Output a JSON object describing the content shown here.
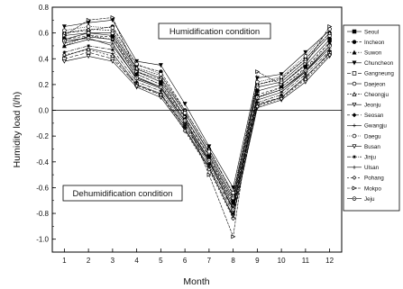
{
  "chart_data": {
    "type": "line",
    "title": "",
    "xlabel": "Month",
    "ylabel": "Humidity load (l/h)",
    "x": [
      1,
      2,
      3,
      4,
      5,
      6,
      7,
      8,
      9,
      10,
      11,
      12
    ],
    "xlim": [
      0.5,
      12.5
    ],
    "ylim": [
      -1.1,
      0.8
    ],
    "yticks": [
      -1.0,
      -0.8,
      -0.6,
      -0.4,
      -0.2,
      0.0,
      0.2,
      0.4,
      0.6,
      0.8
    ],
    "y_tick_labels": [
      "-1.0",
      "-0.8",
      "-0.6",
      "-0.4",
      "-0.2",
      "0.0",
      "0.2",
      "0.4",
      "0.6",
      "0.8"
    ],
    "x_tick_labels": [
      "1",
      "2",
      "3",
      "4",
      "5",
      "6",
      "7",
      "8",
      "9",
      "10",
      "11",
      "12"
    ],
    "grid": false,
    "legend_position": "right",
    "zero_line": true,
    "annotations": [
      {
        "text": "Humidification condition",
        "boxed": true
      },
      {
        "text": "Dehumidification condition",
        "boxed": true
      }
    ],
    "series": [
      {
        "name": "Seoul",
        "marker": "square-filled",
        "values": [
          0.55,
          0.6,
          0.58,
          0.3,
          0.22,
          -0.05,
          -0.35,
          -0.7,
          0.15,
          0.2,
          0.35,
          0.55
        ]
      },
      {
        "name": "Incheon",
        "marker": "circle-filled",
        "values": [
          0.6,
          0.62,
          0.65,
          0.35,
          0.3,
          0.0,
          -0.3,
          -0.65,
          0.2,
          0.25,
          0.4,
          0.6
        ]
      },
      {
        "name": "Suwon",
        "marker": "triangle-filled",
        "values": [
          0.5,
          0.58,
          0.55,
          0.28,
          0.2,
          -0.08,
          -0.38,
          -0.72,
          0.1,
          0.18,
          0.32,
          0.52
        ]
      },
      {
        "name": "Chuncheon",
        "marker": "tri-down-filled",
        "values": [
          0.65,
          0.68,
          0.7,
          0.38,
          0.35,
          0.05,
          -0.28,
          -0.6,
          0.25,
          0.28,
          0.45,
          0.62
        ]
      },
      {
        "name": "Gangneung",
        "marker": "square-open",
        "values": [
          0.4,
          0.45,
          0.4,
          0.2,
          0.12,
          -0.12,
          -0.4,
          -0.78,
          0.05,
          0.1,
          0.25,
          0.45
        ]
      },
      {
        "name": "Daejeon",
        "marker": "circle-open",
        "values": [
          0.58,
          0.6,
          0.6,
          0.32,
          0.25,
          -0.02,
          -0.33,
          -0.68,
          0.18,
          0.22,
          0.38,
          0.58
        ]
      },
      {
        "name": "Cheongju",
        "marker": "triangle-open",
        "values": [
          0.6,
          0.63,
          0.62,
          0.33,
          0.27,
          0.0,
          -0.3,
          -0.66,
          0.2,
          0.24,
          0.4,
          0.6
        ]
      },
      {
        "name": "Jeonju",
        "marker": "tri-down-open",
        "values": [
          0.52,
          0.57,
          0.55,
          0.26,
          0.18,
          -0.08,
          -0.38,
          -0.74,
          0.1,
          0.16,
          0.3,
          0.5
        ]
      },
      {
        "name": "Seosan",
        "marker": "diamond-filled",
        "values": [
          0.55,
          0.58,
          0.57,
          0.28,
          0.2,
          -0.06,
          -0.36,
          -0.72,
          0.12,
          0.18,
          0.33,
          0.53
        ]
      },
      {
        "name": "Gwangju",
        "marker": "plus",
        "values": [
          0.5,
          0.55,
          0.52,
          0.24,
          0.17,
          -0.1,
          -0.4,
          -0.76,
          0.08,
          0.14,
          0.3,
          0.48
        ]
      },
      {
        "name": "Daegu",
        "marker": "circle-open",
        "values": [
          0.62,
          0.65,
          0.64,
          0.36,
          0.28,
          -0.02,
          -0.32,
          -0.64,
          0.22,
          0.26,
          0.42,
          0.63
        ]
      },
      {
        "name": "Busan",
        "marker": "tri-down-open",
        "values": [
          0.38,
          0.42,
          0.38,
          0.18,
          0.1,
          -0.15,
          -0.45,
          -0.82,
          0.02,
          0.08,
          0.22,
          0.42
        ]
      },
      {
        "name": "Jinju",
        "marker": "star",
        "values": [
          0.45,
          0.5,
          0.47,
          0.22,
          0.15,
          -0.12,
          -0.42,
          -0.8,
          0.06,
          0.12,
          0.28,
          0.46
        ]
      },
      {
        "name": "Ulsan",
        "marker": "plus",
        "values": [
          0.42,
          0.48,
          0.44,
          0.2,
          0.13,
          -0.14,
          -0.44,
          -0.83,
          0.04,
          0.1,
          0.26,
          0.44
        ]
      },
      {
        "name": "Pohang",
        "marker": "diamond-open",
        "values": [
          0.43,
          0.47,
          0.42,
          0.19,
          0.12,
          -0.16,
          -0.46,
          -0.84,
          0.03,
          0.09,
          0.24,
          0.43
        ]
      },
      {
        "name": "Mokpo",
        "marker": "tri-right-open",
        "values": [
          0.58,
          0.7,
          0.72,
          0.3,
          0.24,
          -0.05,
          -0.5,
          -0.98,
          0.3,
          0.2,
          0.36,
          0.65
        ]
      },
      {
        "name": "Jeju",
        "marker": "circle-dot-open",
        "values": [
          0.54,
          0.56,
          0.5,
          0.25,
          0.18,
          -0.08,
          -0.39,
          -0.77,
          0.1,
          0.16,
          0.31,
          0.5
        ]
      }
    ]
  }
}
